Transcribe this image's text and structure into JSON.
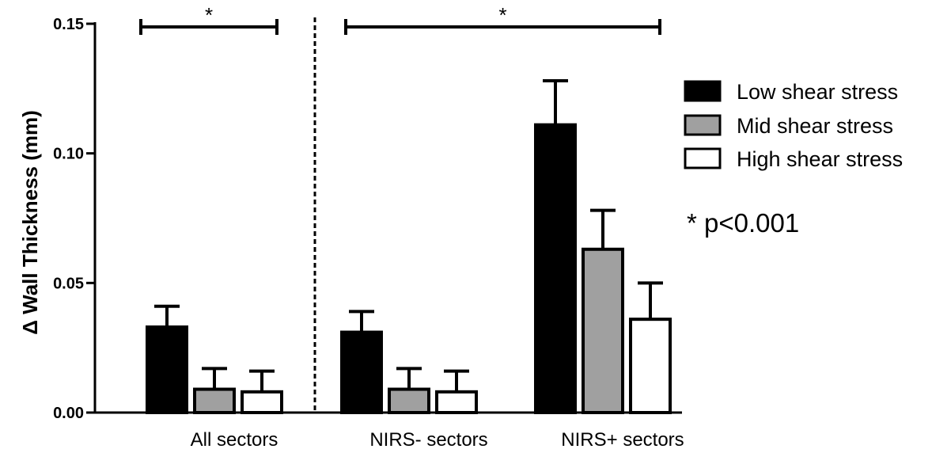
{
  "chart_data": {
    "type": "bar",
    "ylabel": "Δ Wall Thickness (mm)",
    "xlabel": "",
    "ylim": [
      0,
      0.15
    ],
    "yticks": [
      "0.00",
      "0.05",
      "0.10",
      "0.15"
    ],
    "categories": [
      "All sectors",
      "NIRS- sectors",
      "NIRS+ sectors"
    ],
    "series": [
      {
        "name": "Low shear stress",
        "color": "#000000",
        "values": [
          0.033,
          0.031,
          0.111
        ],
        "errors": [
          0.008,
          0.008,
          0.017
        ]
      },
      {
        "name": "Mid shear stress",
        "color": "#a0a0a0",
        "values": [
          0.009,
          0.009,
          0.063
        ],
        "errors": [
          0.008,
          0.008,
          0.015
        ]
      },
      {
        "name": "High shear stress",
        "color": "#ffffff",
        "values": [
          0.008,
          0.008,
          0.036
        ],
        "errors": [
          0.008,
          0.008,
          0.014
        ]
      }
    ],
    "significance": [
      {
        "label": "*",
        "categories": [
          "All sectors"
        ]
      },
      {
        "label": "*",
        "categories": [
          "NIRS- sectors",
          "NIRS+ sectors"
        ]
      }
    ],
    "annotation": "* p<0.001",
    "legend_position": "right",
    "grid": false
  }
}
